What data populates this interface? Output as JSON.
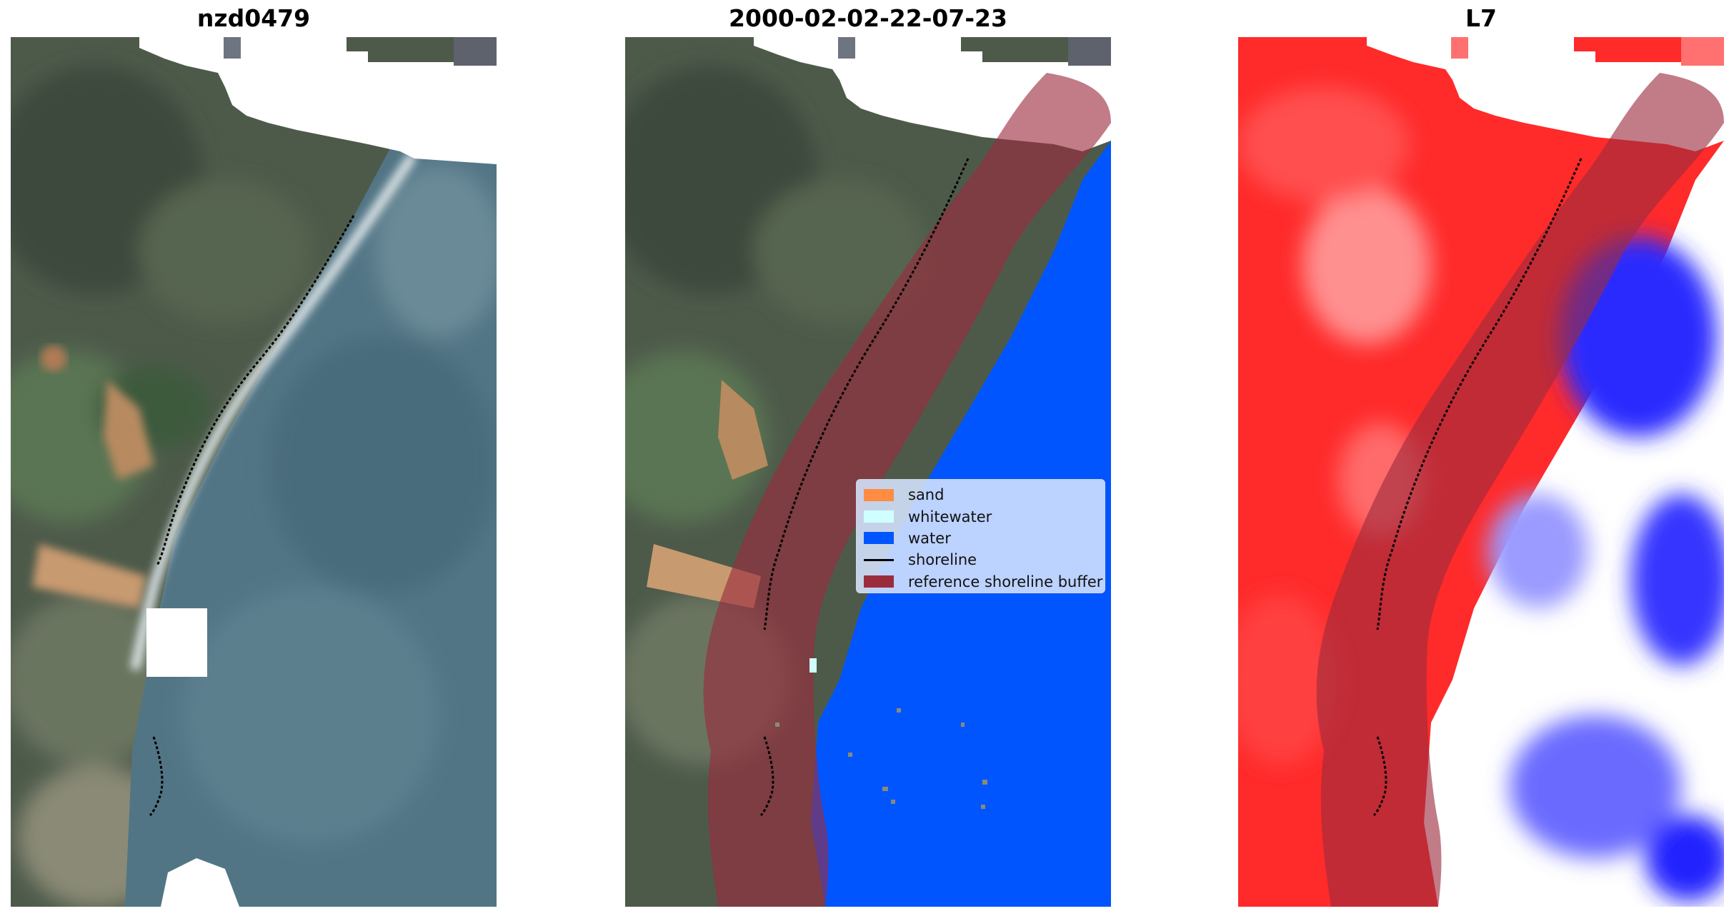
{
  "titles": {
    "left": "nzd0479",
    "middle": "2000-02-02-22-07-23",
    "right": "L7"
  },
  "legend": {
    "items": [
      {
        "label": "sand",
        "color": "#ff8c42",
        "kind": "patch"
      },
      {
        "label": "whitewater",
        "color": "#cfffff",
        "kind": "patch"
      },
      {
        "label": "water",
        "color": "#0055ff",
        "kind": "patch"
      },
      {
        "label": "shoreline",
        "color": "#000000",
        "kind": "line"
      },
      {
        "label": "reference shoreline buffer",
        "color": "#9b2c3d",
        "kind": "patch"
      }
    ]
  },
  "colors": {
    "sand": "#ff8c42",
    "whitewater": "#cfffff",
    "water": "#0055ff",
    "shoreline": "#000000",
    "buffer": "#9b2c3d"
  }
}
